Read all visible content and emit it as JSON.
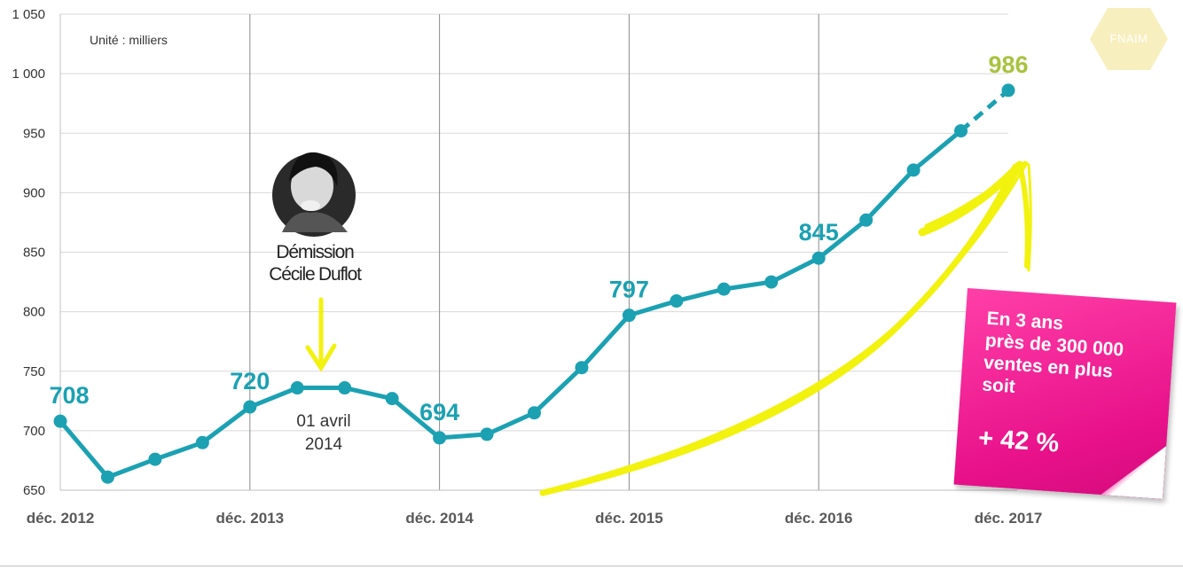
{
  "chart_data": {
    "type": "line",
    "unit_note": "Unité : milliers",
    "ylim": [
      650,
      1050
    ],
    "y_ticks": [
      "650",
      "700",
      "750",
      "800",
      "850",
      "900",
      "950",
      "1 000",
      "1 050"
    ],
    "y_tick_values": [
      650,
      700,
      750,
      800,
      850,
      900,
      950,
      1000,
      1050
    ],
    "x_ticks": [
      "déc. 2012",
      "déc. 2013",
      "déc. 2014",
      "déc. 2015",
      "déc. 2016",
      "déc. 2017"
    ],
    "x_tick_indices": [
      0,
      4,
      8,
      12,
      16,
      20
    ],
    "x_index_range": [
      0,
      20
    ],
    "grid": "horizontal and vertical",
    "series": [
      {
        "values": [
          708,
          661,
          676,
          690,
          720,
          736,
          736,
          727,
          694,
          697,
          715,
          753,
          797,
          809,
          819,
          825,
          845,
          877,
          919,
          952,
          986
        ],
        "projected_from_index": 19,
        "color": "#1ba1b2"
      }
    ],
    "data_labels": [
      {
        "index": 0,
        "text": "708",
        "color": "#1ba1b2"
      },
      {
        "index": 4,
        "text": "720",
        "color": "#1ba1b2"
      },
      {
        "index": 8,
        "text": "694",
        "color": "#1ba1b2"
      },
      {
        "index": 12,
        "text": "797",
        "color": "#1ba1b2"
      },
      {
        "index": 16,
        "text": "845",
        "color": "#1ba1b2"
      },
      {
        "index": 20,
        "text": "986",
        "color": "#a9c23f"
      }
    ],
    "annotations": {
      "event_title_line1": "Démission",
      "event_title_line2": "Cécile Duflot",
      "event_date_line1": "01 avril",
      "event_date_line2": "2014"
    }
  },
  "logo": {
    "text": "FNAIM"
  },
  "sticky_note": {
    "line1": "En 3 ans",
    "line2": "près de 300 000",
    "line3": "ventes en plus",
    "line4": "soit",
    "big": "+ 42 %",
    "color": "#e8118a"
  },
  "colors": {
    "line": "#1ba1b2",
    "highlight": "#a9c23f",
    "arrow": "#f2f20f",
    "grid": "#d9d9d9"
  }
}
